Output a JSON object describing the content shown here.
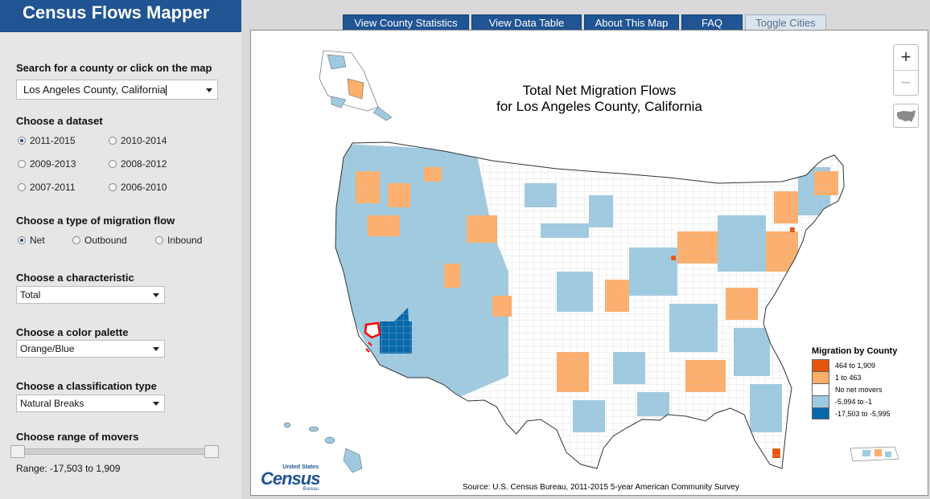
{
  "app": {
    "title": "Census Flows Mapper"
  },
  "tabs": [
    {
      "label": "View County Statistics"
    },
    {
      "label": "View Data Table"
    },
    {
      "label": "About This Map"
    },
    {
      "label": "FAQ"
    },
    {
      "label": "Toggle Cities"
    }
  ],
  "search": {
    "label": "Search for a county or click on the map",
    "value": "Los Angeles County, California"
  },
  "dataset": {
    "label": "Choose a dataset",
    "options": [
      "2011-2015",
      "2010-2014",
      "2009-2013",
      "2008-2012",
      "2007-2011",
      "2006-2010"
    ],
    "selected": "2011-2015"
  },
  "flow": {
    "label": "Choose a type of migration flow",
    "options": [
      "Net",
      "Outbound",
      "Inbound"
    ],
    "selected": "Net"
  },
  "characteristic": {
    "label": "Choose a characteristic",
    "value": "Total"
  },
  "palette": {
    "label": "Choose a color palette",
    "value": "Orange/Blue"
  },
  "classification": {
    "label": "Choose a classification type",
    "value": "Natural Breaks"
  },
  "range": {
    "label": "Choose range of movers",
    "text": "Range: -17,503 to 1,909",
    "min": -17503,
    "max": 1909
  },
  "map": {
    "title_line1": "Total Net Migration Flows",
    "title_line2": "for Los Angeles County, California",
    "zoom_in": "+",
    "zoom_out": "−",
    "source": "Source: U.S. Census Bureau, 2011-2015 5-year American Community Survey",
    "logo_top": "United States",
    "logo_main": "Census",
    "logo_bottom": "Bureau"
  },
  "legend": {
    "title": "Migration by County",
    "items": [
      {
        "label": "464 to 1,909",
        "color": "#e6550d"
      },
      {
        "label": "1 to 463",
        "color": "#fdae6b"
      },
      {
        "label": "No net movers",
        "color": "#ffffff"
      },
      {
        "label": "-5,994 to -1",
        "color": "#9ecae1"
      },
      {
        "label": "-17,503 to -5,995",
        "color": "#0868ac"
      }
    ]
  },
  "colors": {
    "brand": "#205493",
    "orange_dark": "#e6550d",
    "orange_light": "#fdae6b",
    "blue_light": "#9ecae1",
    "blue_dark": "#0868ac",
    "highlight": "#ff0000"
  }
}
